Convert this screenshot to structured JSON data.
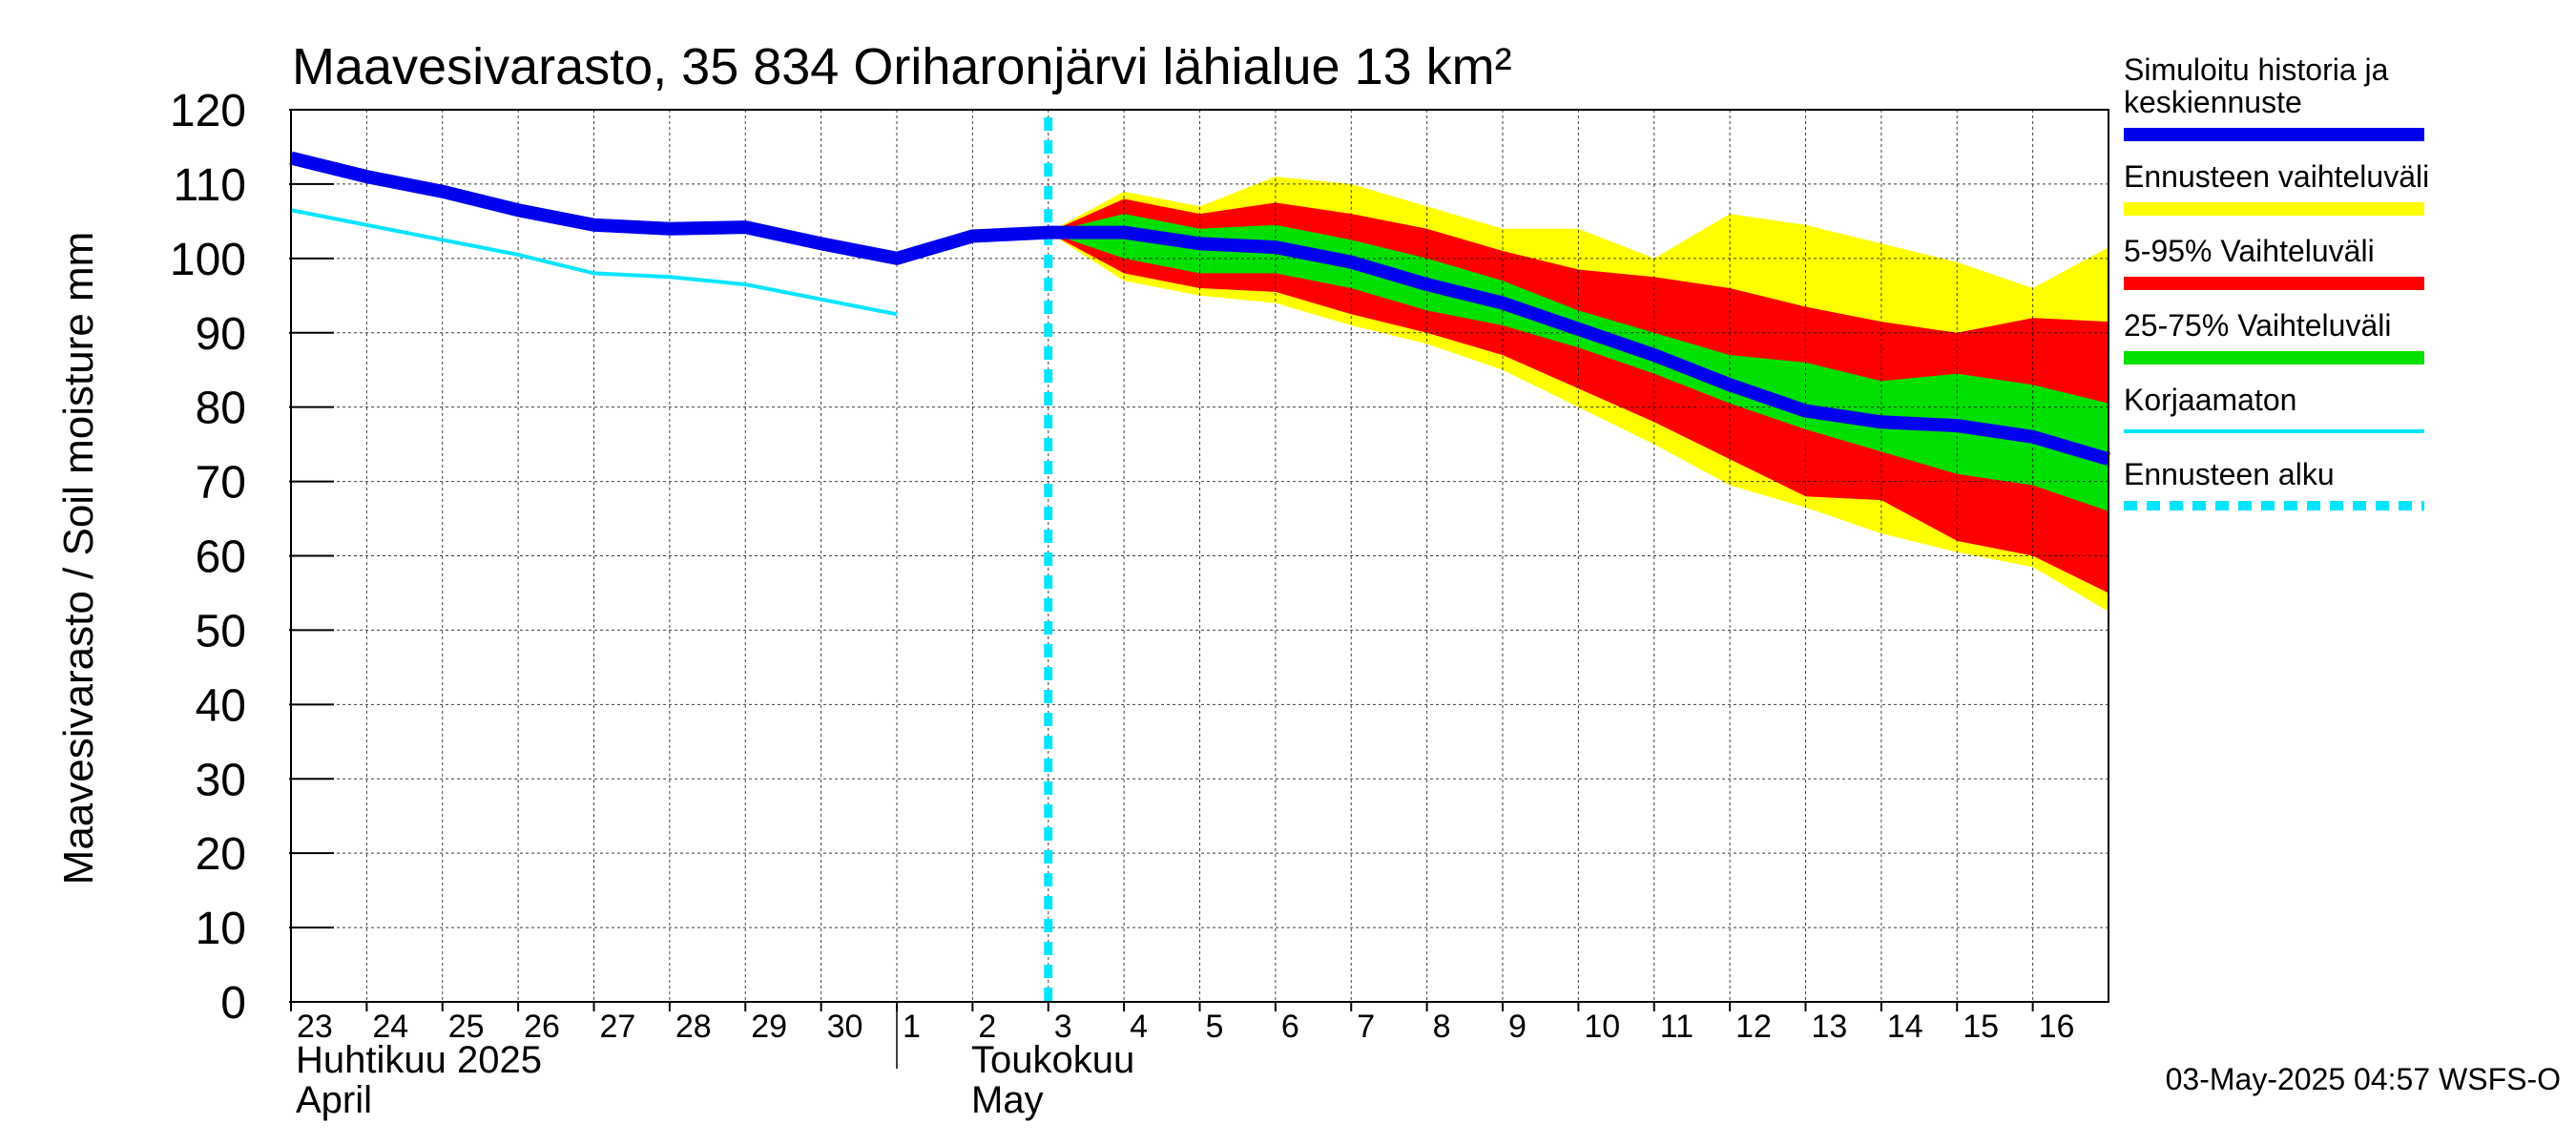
{
  "chart_data": {
    "type": "area",
    "title": "Maavesivarasto, 35 834 Oriharonjärvi lähialue 13 km²",
    "ylabel": "Maavesivarasto / Soil moisture   mm",
    "ylim": [
      0,
      120
    ],
    "y_ticks": [
      "0",
      "10",
      "20",
      "30",
      "40",
      "50",
      "60",
      "70",
      "80",
      "90",
      "100",
      "110",
      "120"
    ],
    "x_range": [
      0,
      24
    ],
    "x_tick_labels": [
      "23",
      "24",
      "25",
      "26",
      "27",
      "28",
      "29",
      "30",
      "1",
      "2",
      "3",
      "4",
      "5",
      "6",
      "7",
      "8",
      "9",
      "10",
      "11",
      "12",
      "13",
      "14",
      "15",
      "16"
    ],
    "month_labels": {
      "april_fi": "Huhtikuu  2025",
      "april_en": "April",
      "may_fi": "Toukokuu",
      "may_en": "May"
    },
    "month_boundary_x": 8,
    "forecast_start_x": 10,
    "grid": true,
    "timestamp": "03-May-2025 04:57 WSFS-O",
    "colors": {
      "history": "#0000ee",
      "range_full": "#ffff00",
      "range_5_95": "#ff0000",
      "range_25_75": "#00e000",
      "uncorrected": "#00e5ff",
      "forecast_start": "#00e5ff"
    },
    "series": [
      {
        "name": "Simuloitu historia ja keskiennuste",
        "x": [
          0,
          1,
          2,
          3,
          4,
          5,
          6,
          7,
          8,
          9,
          10,
          11,
          12,
          13,
          14,
          15,
          16,
          17,
          18,
          19,
          20,
          21,
          22,
          23,
          24
        ],
        "values": [
          113.5,
          111,
          109,
          106.5,
          104.5,
          104,
          104.2,
          102,
          100,
          103,
          103.5,
          103.5,
          102,
          101.5,
          99.5,
          96.5,
          94,
          90.5,
          87,
          83,
          79.5,
          78,
          77.5,
          76,
          73
        ]
      },
      {
        "name": "Korjaamaton",
        "x": [
          0,
          1,
          2,
          3,
          4,
          5,
          6,
          7,
          8
        ],
        "values": [
          106.5,
          104.5,
          102.5,
          100.5,
          98,
          97.5,
          96.5,
          94.5,
          92.5
        ]
      }
    ],
    "bands": [
      {
        "name": "Ennusteen vaihteluväli",
        "x": [
          10,
          11,
          12,
          13,
          14,
          15,
          16,
          17,
          18,
          19,
          20,
          21,
          22,
          23,
          24
        ],
        "upper": [
          103.5,
          109,
          107,
          111,
          110,
          107,
          104,
          104,
          100,
          106,
          104.5,
          102,
          99.5,
          96,
          101.5
        ],
        "lower": [
          103.5,
          97,
          95,
          94,
          91,
          88.5,
          85,
          80,
          75,
          69.5,
          66.5,
          63,
          60.5,
          58.5,
          52.5
        ]
      },
      {
        "name": "5-95% Vaihteluväli",
        "x": [
          10,
          11,
          12,
          13,
          14,
          15,
          16,
          17,
          18,
          19,
          20,
          21,
          22,
          23,
          24
        ],
        "upper": [
          103.5,
          108,
          106,
          107.5,
          106,
          104,
          101,
          98.5,
          97.5,
          96,
          93.5,
          91.5,
          90,
          92,
          91.5
        ],
        "lower": [
          103.5,
          98,
          96,
          95.5,
          92.5,
          90,
          87,
          82.5,
          78,
          73,
          68,
          67.5,
          62,
          60,
          55
        ]
      },
      {
        "name": "25-75% Vaihteluväli",
        "x": [
          10,
          11,
          12,
          13,
          14,
          15,
          16,
          17,
          18,
          19,
          20,
          21,
          22,
          23,
          24
        ],
        "upper": [
          103.5,
          106,
          104,
          104.5,
          102.5,
          100,
          97,
          93,
          90,
          87,
          86,
          83.5,
          84.5,
          83,
          80.5
        ],
        "lower": [
          103.5,
          100,
          98,
          98,
          96,
          93,
          91,
          88,
          84.5,
          80.5,
          77,
          74,
          71,
          69.5,
          66
        ]
      }
    ],
    "legend": {
      "history_line1": "Simuloitu historia ja",
      "history_line2": "keskiennuste",
      "range_full": "Ennusteen vaihteluväli",
      "range_5_95": "5-95% Vaihteluväli",
      "range_25_75": "25-75% Vaihteluväli",
      "uncorrected": "Korjaamaton",
      "forecast_start": "Ennusteen alku"
    }
  }
}
